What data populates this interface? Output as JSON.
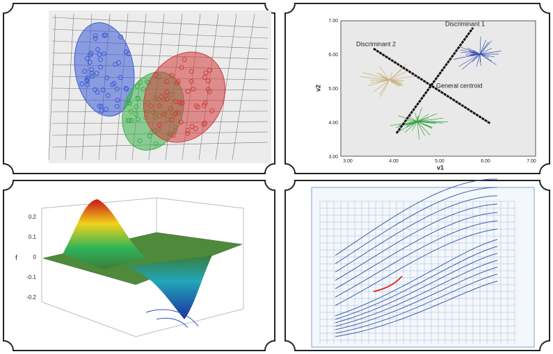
{
  "discriminant_plot": {
    "labels": [
      "Discriminant 1",
      "Discriminant 2",
      "General centroid"
    ],
    "x_axis_label": "v1",
    "y_axis_label": "v2",
    "x_ticks": [
      "3.00",
      "4.00",
      "5.00",
      "6.00",
      "7.00"
    ],
    "y_ticks": [
      "7.00",
      "6.00",
      "5.00",
      "4.00",
      "3.00"
    ]
  },
  "surface_plot": {
    "z_axis_label": "f",
    "z_ticks": [
      "0.2",
      "0.1",
      "0",
      "-0.1",
      "-0.2"
    ]
  }
}
